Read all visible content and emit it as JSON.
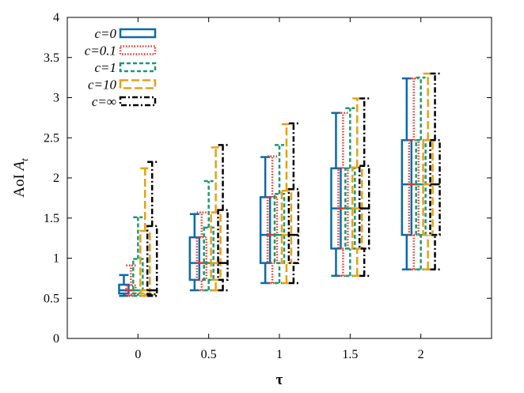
{
  "chart_data": {
    "type": "boxplot",
    "title": "",
    "xlabel": "τ",
    "ylabel": "AoI A_t",
    "ylabel_main": "AoI ",
    "ylabel_symbol": "A",
    "ylabel_sub": "t",
    "xlim": [
      -0.5,
      2.5
    ],
    "ylim": [
      0,
      4
    ],
    "x_ticks": [
      0,
      0.5,
      1,
      1.5,
      2
    ],
    "x_tick_labels": [
      "0",
      "0.5",
      "1",
      "1.5",
      "2"
    ],
    "y_ticks": [
      0,
      0.5,
      1,
      1.5,
      2,
      2.5,
      3,
      3.5,
      4
    ],
    "y_tick_labels": [
      "0",
      "0.5",
      "1",
      "1.5",
      "2",
      "2.5",
      "3",
      "3.5",
      "4"
    ],
    "legend_position": "top-left",
    "series": [
      {
        "name": "c=0",
        "color": "#0a6aab",
        "dash": "solid",
        "boxes": [
          {
            "tau": 0,
            "whislo": 0.53,
            "q1": 0.56,
            "med": 0.6,
            "q3": 0.67,
            "whishi": 0.79
          },
          {
            "tau": 0.5,
            "whislo": 0.6,
            "q1": 0.73,
            "med": 0.94,
            "q3": 1.26,
            "whishi": 1.55
          },
          {
            "tau": 1,
            "whislo": 0.69,
            "q1": 0.94,
            "med": 1.29,
            "q3": 1.76,
            "whishi": 2.26
          },
          {
            "tau": 1.5,
            "whislo": 0.78,
            "q1": 1.12,
            "med": 1.62,
            "q3": 2.12,
            "whishi": 2.81
          },
          {
            "tau": 2,
            "whislo": 0.86,
            "q1": 1.29,
            "med": 1.92,
            "q3": 2.47,
            "whishi": 3.24
          }
        ]
      },
      {
        "name": "c=0.1",
        "color": "#e5342a",
        "dash": "dotted",
        "boxes": [
          {
            "tau": 0,
            "whislo": 0.53,
            "q1": 0.55,
            "med": 0.6,
            "q3": 0.66,
            "whishi": 0.91
          },
          {
            "tau": 0.5,
            "whislo": 0.6,
            "q1": 0.73,
            "med": 0.94,
            "q3": 1.26,
            "whishi": 1.57
          },
          {
            "tau": 1,
            "whislo": 0.69,
            "q1": 0.94,
            "med": 1.29,
            "q3": 1.76,
            "whishi": 2.27
          },
          {
            "tau": 1.5,
            "whislo": 0.78,
            "q1": 1.12,
            "med": 1.62,
            "q3": 2.12,
            "whishi": 2.81
          },
          {
            "tau": 2,
            "whislo": 0.86,
            "q1": 1.29,
            "med": 1.92,
            "q3": 2.47,
            "whishi": 3.24
          }
        ]
      },
      {
        "name": "c=1",
        "color": "#1a9a72",
        "dash": "short",
        "boxes": [
          {
            "tau": 0,
            "whislo": 0.53,
            "q1": 0.56,
            "med": 0.6,
            "q3": 0.99,
            "whishi": 1.51
          },
          {
            "tau": 0.5,
            "whislo": 0.6,
            "q1": 0.73,
            "med": 0.94,
            "q3": 1.38,
            "whishi": 1.96
          },
          {
            "tau": 1,
            "whislo": 0.69,
            "q1": 0.94,
            "med": 1.29,
            "q3": 1.8,
            "whishi": 2.41
          },
          {
            "tau": 1.5,
            "whislo": 0.78,
            "q1": 1.12,
            "med": 1.62,
            "q3": 2.12,
            "whishi": 2.87
          },
          {
            "tau": 2,
            "whislo": 0.86,
            "q1": 1.29,
            "med": 1.92,
            "q3": 2.47,
            "whishi": 3.25
          }
        ]
      },
      {
        "name": "c=10",
        "color": "#e6a117",
        "dash": "long",
        "boxes": [
          {
            "tau": 0,
            "whislo": 0.53,
            "q1": 0.56,
            "med": 0.6,
            "q3": 1.34,
            "whishi": 2.12
          },
          {
            "tau": 0.5,
            "whislo": 0.6,
            "q1": 0.73,
            "med": 0.94,
            "q3": 1.57,
            "whishi": 2.38
          },
          {
            "tau": 1,
            "whislo": 0.69,
            "q1": 0.94,
            "med": 1.29,
            "q3": 1.84,
            "whishi": 2.67
          },
          {
            "tau": 1.5,
            "whislo": 0.78,
            "q1": 1.12,
            "med": 1.62,
            "q3": 2.13,
            "whishi": 2.99
          },
          {
            "tau": 2,
            "whislo": 0.86,
            "q1": 1.29,
            "med": 1.92,
            "q3": 2.47,
            "whishi": 3.3
          }
        ]
      },
      {
        "name": "c=∞",
        "color": "#000000",
        "dash": "dashdot",
        "boxes": [
          {
            "tau": 0,
            "whislo": 0.53,
            "q1": 0.55,
            "med": 0.6,
            "q3": 1.4,
            "whishi": 2.2
          },
          {
            "tau": 0.5,
            "whislo": 0.6,
            "q1": 0.73,
            "med": 0.94,
            "q3": 1.6,
            "whishi": 2.41
          },
          {
            "tau": 1,
            "whislo": 0.69,
            "q1": 0.94,
            "med": 1.29,
            "q3": 1.86,
            "whishi": 2.68
          },
          {
            "tau": 1.5,
            "whislo": 0.78,
            "q1": 1.12,
            "med": 1.62,
            "q3": 2.15,
            "whishi": 2.99
          },
          {
            "tau": 2,
            "whislo": 0.86,
            "q1": 1.29,
            "med": 1.92,
            "q3": 2.47,
            "whishi": 3.3
          }
        ]
      }
    ]
  }
}
